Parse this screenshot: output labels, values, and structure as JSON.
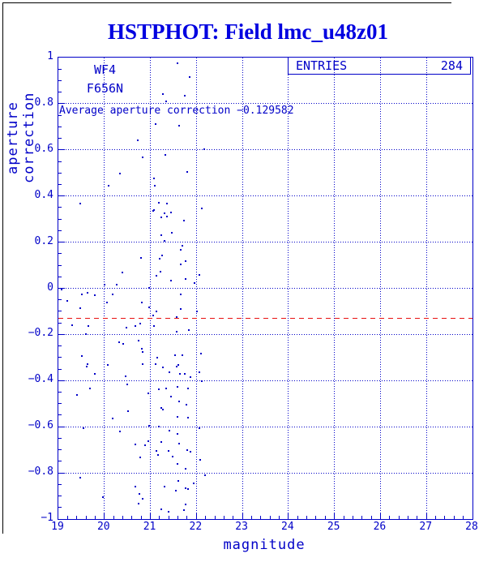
{
  "title": "HSTPHOT: Field lmc_u48z01",
  "stats_box": {
    "label": "ENTRIES",
    "value": "284"
  },
  "annotations": {
    "camera": "WF4",
    "filter": "F656N",
    "average_note": "Average aperture correction −0.129582"
  },
  "colors": {
    "line_blue": "#0000c8",
    "title_blue": "#0000e0",
    "average_red": "#e81212"
  },
  "chart_data": {
    "type": "scatter",
    "title": "HSTPHOT: Field lmc_u48z01",
    "xlabel": "magnitude",
    "ylabel": "aperture correction",
    "xlim": [
      19,
      28
    ],
    "ylim": [
      -1,
      1
    ],
    "grid": true,
    "legend_position": "top-right",
    "entries": 284,
    "average_aperture_correction": -0.129582,
    "x_ticks": [
      {
        "v": 19,
        "label": "19"
      },
      {
        "v": 20,
        "label": "20"
      },
      {
        "v": 21,
        "label": "21"
      },
      {
        "v": 22,
        "label": "22"
      },
      {
        "v": 23,
        "label": "23"
      },
      {
        "v": 24,
        "label": "24"
      },
      {
        "v": 25,
        "label": "25"
      },
      {
        "v": 26,
        "label": "26"
      },
      {
        "v": 27,
        "label": "27"
      },
      {
        "v": 28,
        "label": "28"
      }
    ],
    "y_ticks": [
      {
        "v": 1,
        "label": "1"
      },
      {
        "v": 0.8,
        "label": "0.8"
      },
      {
        "v": 0.6,
        "label": "0.6"
      },
      {
        "v": 0.4,
        "label": "0.4"
      },
      {
        "v": 0.2,
        "label": "0.2"
      },
      {
        "v": 0,
        "label": "0"
      },
      {
        "v": -0.2,
        "label": "−0.2"
      },
      {
        "v": -0.4,
        "label": "−0.4"
      },
      {
        "v": -0.6,
        "label": "−0.6"
      },
      {
        "v": -0.8,
        "label": "−0.8"
      },
      {
        "v": -1,
        "label": "−1"
      }
    ],
    "points": [
      [
        21.59,
        0.975
      ],
      [
        21.85,
        0.916
      ],
      [
        21.27,
        0.842
      ],
      [
        21.75,
        0.835
      ],
      [
        21.34,
        0.81
      ],
      [
        21.11,
        0.712
      ],
      [
        21.62,
        0.705
      ],
      [
        20.73,
        0.641
      ],
      [
        22.17,
        0.603
      ],
      [
        21.32,
        0.578
      ],
      [
        20.83,
        0.568
      ],
      [
        21.8,
        0.504
      ],
      [
        20.34,
        0.497
      ],
      [
        21.08,
        0.476
      ],
      [
        21.1,
        0.445
      ],
      [
        20.09,
        0.445
      ],
      [
        19.48,
        0.367
      ],
      [
        21.18,
        0.371
      ],
      [
        21.36,
        0.367
      ],
      [
        22.12,
        0.346
      ],
      [
        21.08,
        0.339
      ],
      [
        21.31,
        0.325
      ],
      [
        21.06,
        0.336
      ],
      [
        21.45,
        0.329
      ],
      [
        21.24,
        0.308
      ],
      [
        21.36,
        0.311
      ],
      [
        21.73,
        0.293
      ],
      [
        21.47,
        0.241
      ],
      [
        21.24,
        0.23
      ],
      [
        21.31,
        0.206
      ],
      [
        21.69,
        0.185
      ],
      [
        21.66,
        0.167
      ],
      [
        20.8,
        0.132
      ],
      [
        21.2,
        0.128
      ],
      [
        21.25,
        0.142
      ],
      [
        21.76,
        0.118
      ],
      [
        21.66,
        0.104
      ],
      [
        20.39,
        0.069
      ],
      [
        21.22,
        0.072
      ],
      [
        21.13,
        0.055
      ],
      [
        22.06,
        0.058
      ],
      [
        21.76,
        0.04
      ],
      [
        21.45,
        0.033
      ],
      [
        21.96,
        0.023
      ],
      [
        20.0,
        0.016
      ],
      [
        20.27,
        0.016
      ],
      [
        20.97,
        0.002
      ],
      [
        19.07,
        -0.005
      ],
      [
        19.51,
        -0.026
      ],
      [
        19.63,
        -0.019
      ],
      [
        19.79,
        -0.03
      ],
      [
        21.66,
        -0.026
      ],
      [
        20.18,
        -0.026
      ],
      [
        19.19,
        -0.054
      ],
      [
        20.06,
        -0.061
      ],
      [
        20.81,
        -0.061
      ],
      [
        20.97,
        -0.083
      ],
      [
        19.48,
        -0.086
      ],
      [
        21.13,
        -0.1
      ],
      [
        21.66,
        -0.09
      ],
      [
        22.01,
        -0.1
      ],
      [
        21.06,
        -0.118
      ],
      [
        21.57,
        -0.125
      ],
      [
        19.3,
        -0.16
      ],
      [
        19.65,
        -0.163
      ],
      [
        20.48,
        -0.17
      ],
      [
        20.67,
        -0.163
      ],
      [
        20.78,
        -0.153
      ],
      [
        21.08,
        -0.163
      ],
      [
        21.84,
        -0.181
      ],
      [
        21.57,
        -0.188
      ],
      [
        19.6,
        -0.199
      ],
      [
        20.74,
        -0.227
      ],
      [
        20.32,
        -0.234
      ],
      [
        20.41,
        -0.241
      ],
      [
        20.81,
        -0.262
      ],
      [
        20.83,
        -0.276
      ],
      [
        22.1,
        -0.283
      ],
      [
        19.51,
        -0.293
      ],
      [
        21.54,
        -0.29
      ],
      [
        21.69,
        -0.29
      ],
      [
        21.15,
        -0.3
      ],
      [
        19.63,
        -0.329
      ],
      [
        20.83,
        -0.329
      ],
      [
        21.11,
        -0.329
      ],
      [
        21.61,
        -0.332
      ],
      [
        19.62,
        -0.339
      ],
      [
        20.07,
        -0.332
      ],
      [
        21.27,
        -0.343
      ],
      [
        21.41,
        -0.364
      ],
      [
        21.57,
        -0.339
      ],
      [
        21.64,
        -0.371
      ],
      [
        21.75,
        -0.371
      ],
      [
        21.87,
        -0.385
      ],
      [
        22.06,
        -0.364
      ],
      [
        22.12,
        -0.402
      ],
      [
        19.79,
        -0.371
      ],
      [
        20.46,
        -0.381
      ],
      [
        20.5,
        -0.416
      ],
      [
        19.69,
        -0.434
      ],
      [
        19.4,
        -0.462
      ],
      [
        20.95,
        -0.455
      ],
      [
        21.18,
        -0.437
      ],
      [
        21.34,
        -0.434
      ],
      [
        21.59,
        -0.427
      ],
      [
        21.82,
        -0.434
      ],
      [
        21.45,
        -0.469
      ],
      [
        21.62,
        -0.49
      ],
      [
        21.78,
        -0.504
      ],
      [
        21.24,
        -0.518
      ],
      [
        21.27,
        -0.525
      ],
      [
        20.51,
        -0.532
      ],
      [
        20.18,
        -0.564
      ],
      [
        21.59,
        -0.557
      ],
      [
        21.82,
        -0.561
      ],
      [
        19.55,
        -0.606
      ],
      [
        20.34,
        -0.62
      ],
      [
        20.97,
        -0.596
      ],
      [
        21.18,
        -0.599
      ],
      [
        21.41,
        -0.617
      ],
      [
        22.06,
        -0.606
      ],
      [
        21.59,
        -0.631
      ],
      [
        20.67,
        -0.677
      ],
      [
        20.88,
        -0.68
      ],
      [
        20.95,
        -0.662
      ],
      [
        21.24,
        -0.666
      ],
      [
        21.62,
        -0.673
      ],
      [
        21.13,
        -0.705
      ],
      [
        21.17,
        -0.722
      ],
      [
        21.39,
        -0.705
      ],
      [
        21.48,
        -0.729
      ],
      [
        21.8,
        -0.701
      ],
      [
        21.87,
        -0.708
      ],
      [
        20.78,
        -0.733
      ],
      [
        22.08,
        -0.743
      ],
      [
        21.59,
        -0.761
      ],
      [
        21.76,
        -0.782
      ],
      [
        22.19,
        -0.81
      ],
      [
        19.48,
        -0.821
      ],
      [
        21.61,
        -0.835
      ],
      [
        20.67,
        -0.859
      ],
      [
        21.31,
        -0.859
      ],
      [
        21.55,
        -0.877
      ],
      [
        21.76,
        -0.866
      ],
      [
        21.82,
        -0.87
      ],
      [
        21.94,
        -0.846
      ],
      [
        20.76,
        -0.891
      ],
      [
        20.83,
        -0.912
      ],
      [
        19.97,
        -0.905
      ],
      [
        21.24,
        -0.958
      ],
      [
        21.39,
        -0.968
      ],
      [
        21.73,
        -0.961
      ],
      [
        20.74,
        -0.933
      ],
      [
        21.76,
        -0.937
      ]
    ]
  }
}
